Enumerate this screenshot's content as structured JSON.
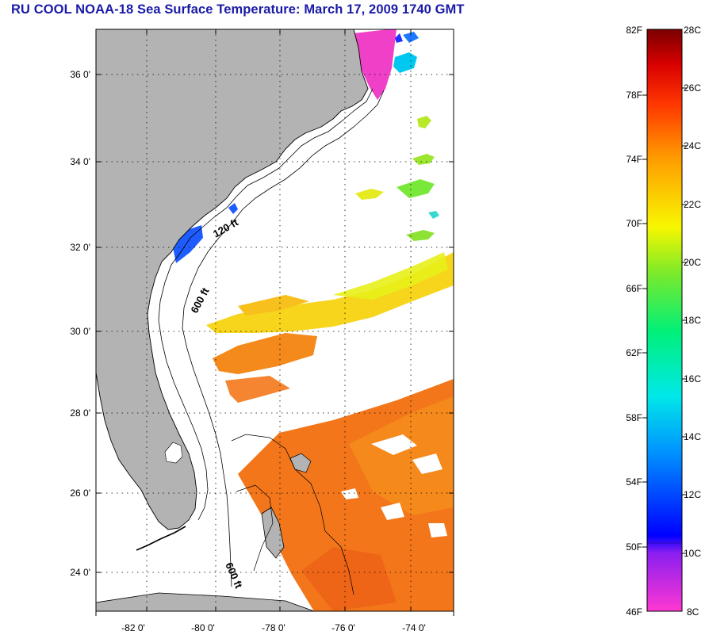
{
  "title": "RU COOL  NOAA-18  Sea Surface Temperature:  March 17, 2009 1740 GMT",
  "map": {
    "lat_labels": [
      "36 0'",
      "34 0'",
      "32 0'",
      "30 0'",
      "28 0'",
      "26 0'",
      "24 0'"
    ],
    "lon_labels": [
      "-82 0'",
      "-80 0'",
      "-78 0'",
      "-76 0'",
      "-74 0'"
    ],
    "isobaths": [
      "120 ft",
      "600 ft",
      "600 ft"
    ],
    "colors": {
      "land": "#b3b3b3",
      "ocean_nodata": "#ffffff"
    }
  },
  "colorbar": {
    "fahrenheit_labels": [
      "82F",
      "78F",
      "74F",
      "70F",
      "66F",
      "62F",
      "58F",
      "54F",
      "50F",
      "46F"
    ],
    "celsius_labels": [
      "28C",
      "26C",
      "24C",
      "22C",
      "20C",
      "18C",
      "16C",
      "14C",
      "12C",
      "10C",
      "8C"
    ],
    "range_c": [
      8,
      28
    ]
  }
}
